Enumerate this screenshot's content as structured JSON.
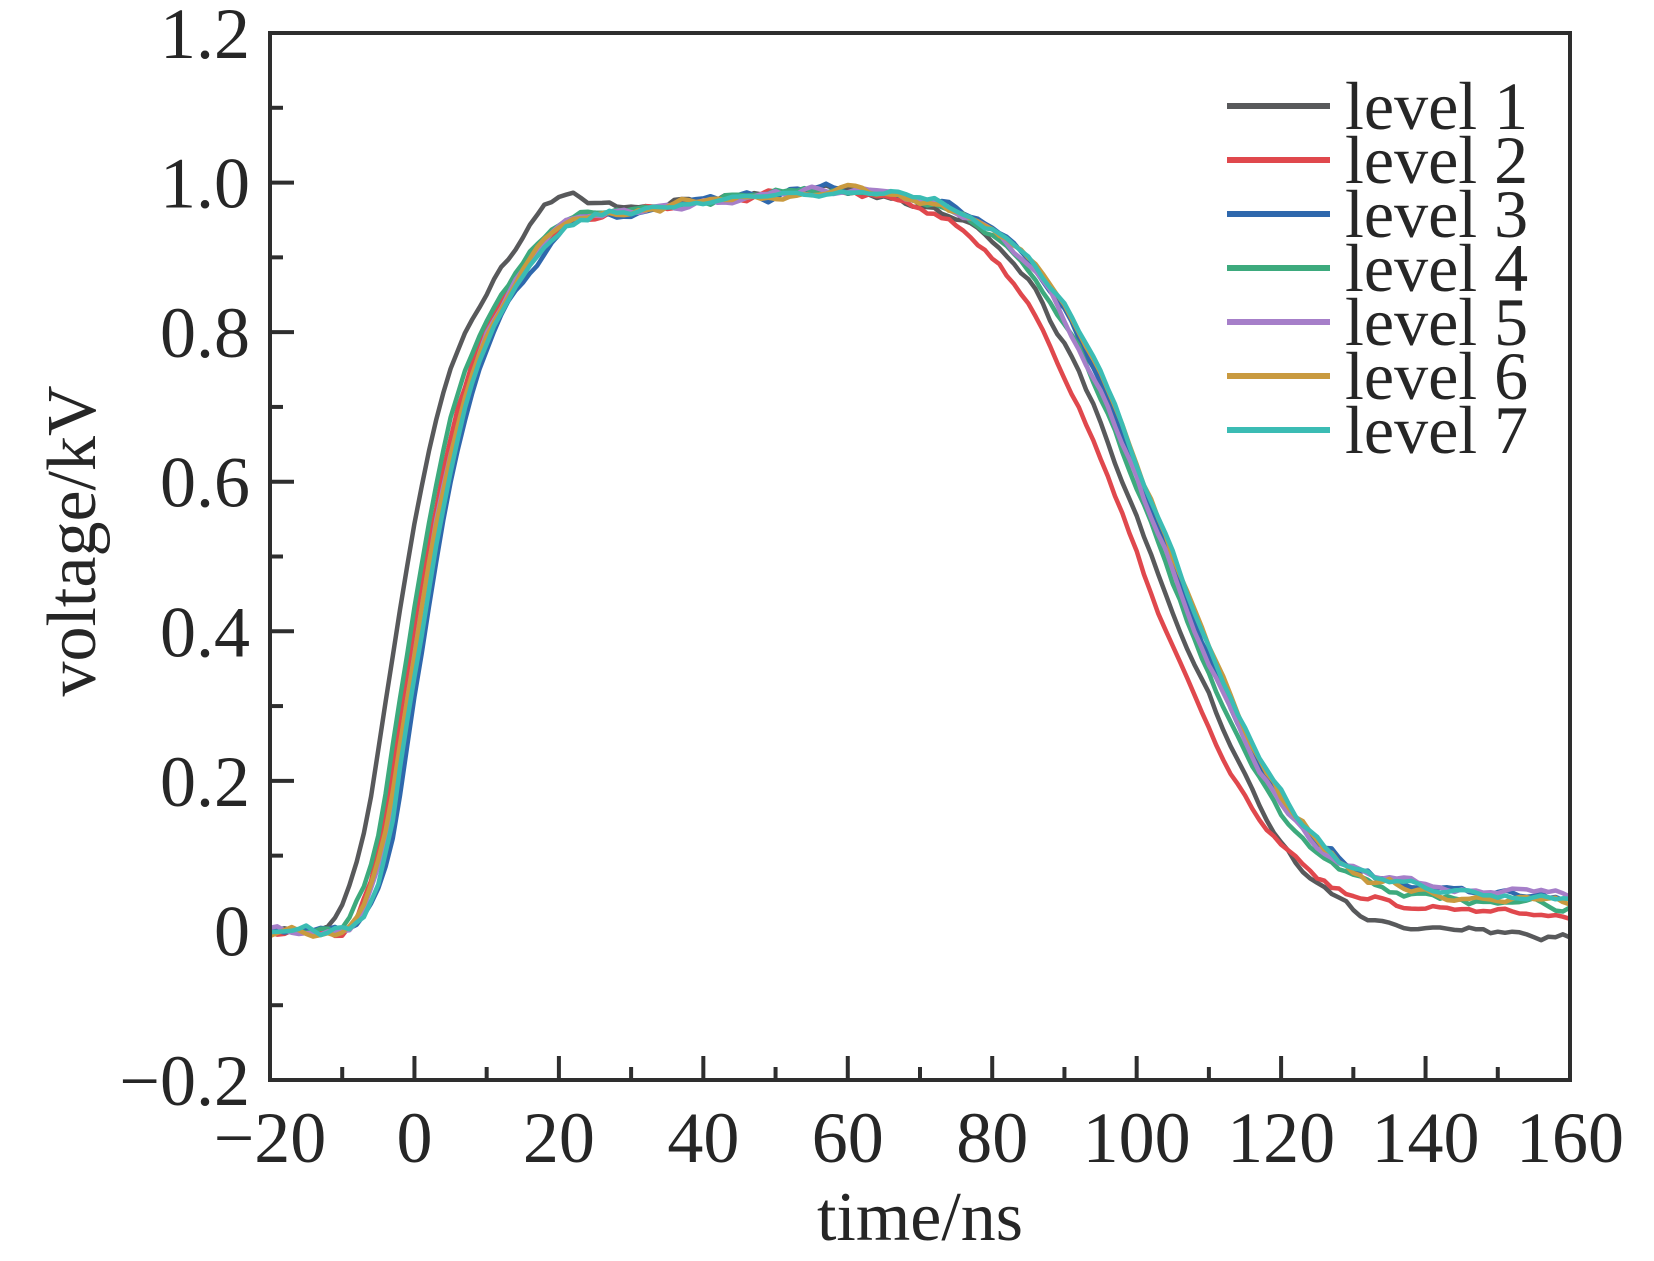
{
  "figure": {
    "background": "#ffffff",
    "text_color": "#262626",
    "axis_color": "#2e2e2e"
  },
  "chart_data": {
    "type": "line",
    "title": "",
    "xlabel": "time/ns",
    "ylabel": "voltage/kV",
    "xlim": [
      -20,
      160
    ],
    "ylim": [
      -0.2,
      1.2
    ],
    "grid": false,
    "legend_position": "top-right",
    "x_major_ticks": [
      -20,
      0,
      20,
      40,
      60,
      80,
      100,
      120,
      140,
      160
    ],
    "x_major_tick_labels": [
      "−20",
      "0",
      "20",
      "40",
      "60",
      "80",
      "100",
      "120",
      "140",
      "160"
    ],
    "x_minor_step": 10,
    "y_major_ticks": [
      1.2,
      1.0,
      0.8,
      0.6,
      0.4,
      0.2,
      0.0,
      -0.2
    ],
    "y_major_tick_labels": [
      "1.2",
      "1.0",
      "0.8",
      "0.6",
      "0.4",
      "0.2",
      "0",
      "−0.2"
    ],
    "y_minor_step": 0.1,
    "noise_amplitude": 0.01,
    "base_pulse_keypoints": [
      [
        -20,
        0.0
      ],
      [
        -16,
        0.0
      ],
      [
        -14,
        -0.003
      ],
      [
        -12,
        0.002
      ],
      [
        -10,
        0.0
      ],
      [
        -8,
        0.02
      ],
      [
        -6,
        0.07
      ],
      [
        -4,
        0.15
      ],
      [
        -2,
        0.28
      ],
      [
        0,
        0.4
      ],
      [
        2,
        0.52
      ],
      [
        4,
        0.62
      ],
      [
        6,
        0.7
      ],
      [
        8,
        0.76
      ],
      [
        10,
        0.81
      ],
      [
        12,
        0.845
      ],
      [
        14,
        0.875
      ],
      [
        16,
        0.9
      ],
      [
        18,
        0.925
      ],
      [
        20,
        0.945
      ],
      [
        24,
        0.955
      ],
      [
        28,
        0.96
      ],
      [
        32,
        0.965
      ],
      [
        36,
        0.97
      ],
      [
        40,
        0.975
      ],
      [
        45,
        0.98
      ],
      [
        50,
        0.985
      ],
      [
        55,
        0.99
      ],
      [
        60,
        0.99
      ],
      [
        65,
        0.985
      ],
      [
        68,
        0.98
      ],
      [
        72,
        0.97
      ],
      [
        76,
        0.955
      ],
      [
        80,
        0.93
      ],
      [
        84,
        0.9
      ],
      [
        88,
        0.845
      ],
      [
        92,
        0.775
      ],
      [
        96,
        0.69
      ],
      [
        100,
        0.59
      ],
      [
        104,
        0.49
      ],
      [
        108,
        0.39
      ],
      [
        112,
        0.3
      ],
      [
        116,
        0.22
      ],
      [
        120,
        0.155
      ],
      [
        124,
        0.11
      ],
      [
        128,
        0.08
      ],
      [
        132,
        0.062
      ],
      [
        136,
        0.052
      ],
      [
        140,
        0.047
      ],
      [
        145,
        0.042
      ],
      [
        150,
        0.04
      ],
      [
        155,
        0.037
      ],
      [
        160,
        0.033
      ]
    ],
    "series": [
      {
        "name": "level 1",
        "color": "#58595b",
        "rise_shift": -2.5,
        "fall_shift": -1.5,
        "tail_offset": -0.04,
        "bump": [
          21,
          0.028,
          4
        ],
        "seed": 11
      },
      {
        "name": "level 2",
        "color": "#e0484d",
        "rise_shift": 0.0,
        "fall_shift": -3.5,
        "tail_offset": -0.01,
        "seed": 22
      },
      {
        "name": "level 3",
        "color": "#2f68ad",
        "rise_shift": 1.5,
        "fall_shift": 1.0,
        "tail_offset": 0.01,
        "seed": 33
      },
      {
        "name": "level 4",
        "color": "#3daa7d",
        "rise_shift": -0.5,
        "fall_shift": 0.0,
        "tail_offset": 0.0,
        "seed": 44
      },
      {
        "name": "level 5",
        "color": "#a67fc9",
        "rise_shift": 0.5,
        "fall_shift": 0.5,
        "tail_offset": 0.012,
        "seed": 55
      },
      {
        "name": "level 6",
        "color": "#c99a3f",
        "rise_shift": 0.5,
        "fall_shift": 1.5,
        "tail_offset": 0.002,
        "seed": 66
      },
      {
        "name": "level 7",
        "color": "#3bbcb4",
        "rise_shift": 1.0,
        "fall_shift": 1.5,
        "tail_offset": 0.006,
        "seed": 77
      }
    ]
  }
}
